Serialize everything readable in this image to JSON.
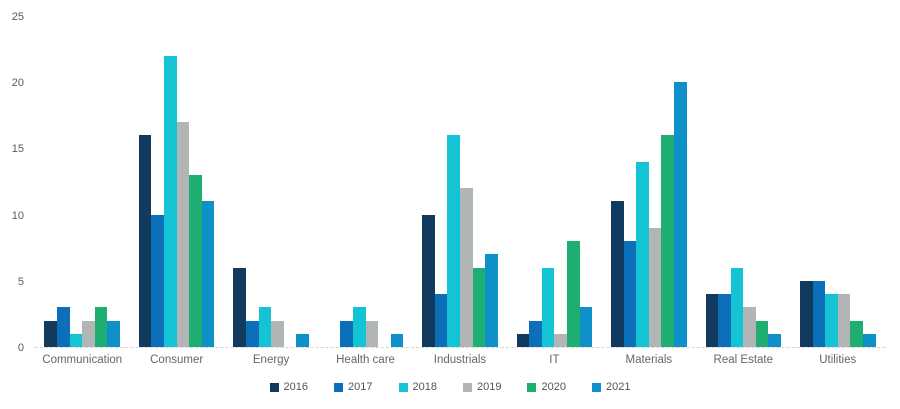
{
  "chart_data": {
    "type": "bar",
    "title": "",
    "xlabel": "",
    "ylabel": "",
    "categories": [
      "Communication",
      "Consumer",
      "Energy",
      "Health care",
      "Industrials",
      "IT",
      "Materials",
      "Real Estate",
      "Utilities"
    ],
    "series": [
      {
        "name": "2016",
        "color": "#123a5f",
        "values": [
          2,
          16,
          6,
          0,
          10,
          1,
          11,
          4,
          5
        ]
      },
      {
        "name": "2017",
        "color": "#0b6fba",
        "values": [
          3,
          10,
          2,
          2,
          4,
          2,
          8,
          4,
          5
        ]
      },
      {
        "name": "2018",
        "color": "#14c3d4",
        "values": [
          1,
          22,
          3,
          3,
          16,
          6,
          14,
          6,
          4
        ]
      },
      {
        "name": "2019",
        "color": "#b2b5b6",
        "values": [
          2,
          17,
          2,
          2,
          12,
          1,
          9,
          3,
          4
        ]
      },
      {
        "name": "2020",
        "color": "#1fae72",
        "values": [
          3,
          13,
          0,
          0,
          6,
          8,
          16,
          2,
          2
        ]
      },
      {
        "name": "2021",
        "color": "#0e91c9",
        "values": [
          2,
          11,
          1,
          1,
          7,
          3,
          20,
          1,
          1
        ]
      }
    ],
    "y_ticks": [
      0,
      5,
      10,
      15,
      20,
      25
    ],
    "ylim": [
      0,
      25
    ],
    "grid": false,
    "legend_position": "bottom"
  },
  "style": {
    "tick_color": "#5a5a5a",
    "category_label_color": "#666666",
    "baseline_color": "#d2d5d6",
    "background": "#ffffff"
  }
}
